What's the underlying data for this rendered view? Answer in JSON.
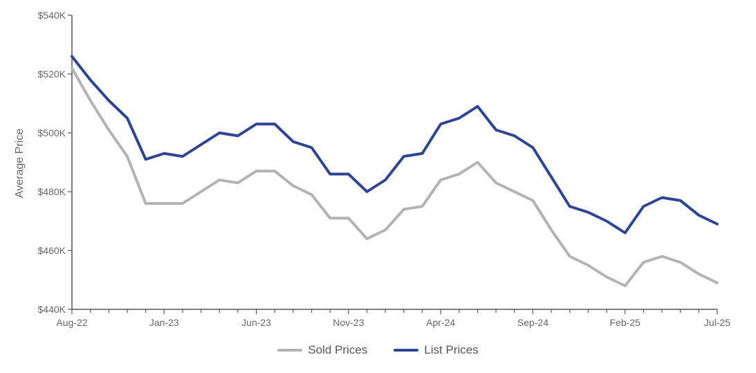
{
  "chart_data": {
    "type": "line",
    "ylabel": "Average Price",
    "ylim": [
      440000,
      540000
    ],
    "yticks": [
      440000,
      460000,
      480000,
      500000,
      520000,
      540000
    ],
    "ytick_labels": [
      "$440K",
      "$460K",
      "$480K",
      "$500K",
      "$520K",
      "$540K"
    ],
    "xtick_labels": [
      "Aug-22",
      "Jan-23",
      "Jun-23",
      "Nov-23",
      "Apr-24",
      "Sep-24",
      "Feb-25",
      "Jul-25"
    ],
    "xtick_indices": [
      0,
      5,
      10,
      15,
      20,
      25,
      30,
      35
    ],
    "categories": [
      "Aug-22",
      "Sep-22",
      "Oct-22",
      "Nov-22",
      "Dec-22",
      "Jan-23",
      "Feb-23",
      "Mar-23",
      "Apr-23",
      "May-23",
      "Jun-23",
      "Jul-23",
      "Aug-23",
      "Sep-23",
      "Oct-23",
      "Nov-23",
      "Dec-23",
      "Jan-24",
      "Feb-24",
      "Mar-24",
      "Apr-24",
      "May-24",
      "Jun-24",
      "Jul-24",
      "Aug-24",
      "Sep-24",
      "Oct-24",
      "Nov-24",
      "Dec-24",
      "Jan-25",
      "Feb-25",
      "Mar-25",
      "Apr-25",
      "May-25",
      "Jun-25",
      "Jul-25"
    ],
    "grid": false,
    "legend_position": "bottom",
    "series": [
      {
        "name": "Sold Prices",
        "color": "#b3b3b3",
        "values": [
          522000,
          511000,
          501000,
          492000,
          476000,
          476000,
          476000,
          480000,
          484000,
          483000,
          487000,
          487000,
          482000,
          479000,
          471000,
          471000,
          464000,
          467000,
          474000,
          475000,
          484000,
          486000,
          490000,
          483000,
          480000,
          477000,
          467000,
          458000,
          455000,
          451000,
          448000,
          456000,
          458000,
          456000,
          452000,
          449000
        ]
      },
      {
        "name": "List Prices",
        "color": "#2e4494",
        "values": [
          526000,
          518000,
          511000,
          505000,
          491000,
          493000,
          492000,
          496000,
          500000,
          499000,
          503000,
          503000,
          497000,
          495000,
          486000,
          486000,
          480000,
          484000,
          492000,
          493000,
          503000,
          505000,
          509000,
          501000,
          499000,
          495000,
          485000,
          475000,
          473000,
          470000,
          466000,
          475000,
          478000,
          477000,
          472000,
          469000
        ]
      }
    ]
  }
}
